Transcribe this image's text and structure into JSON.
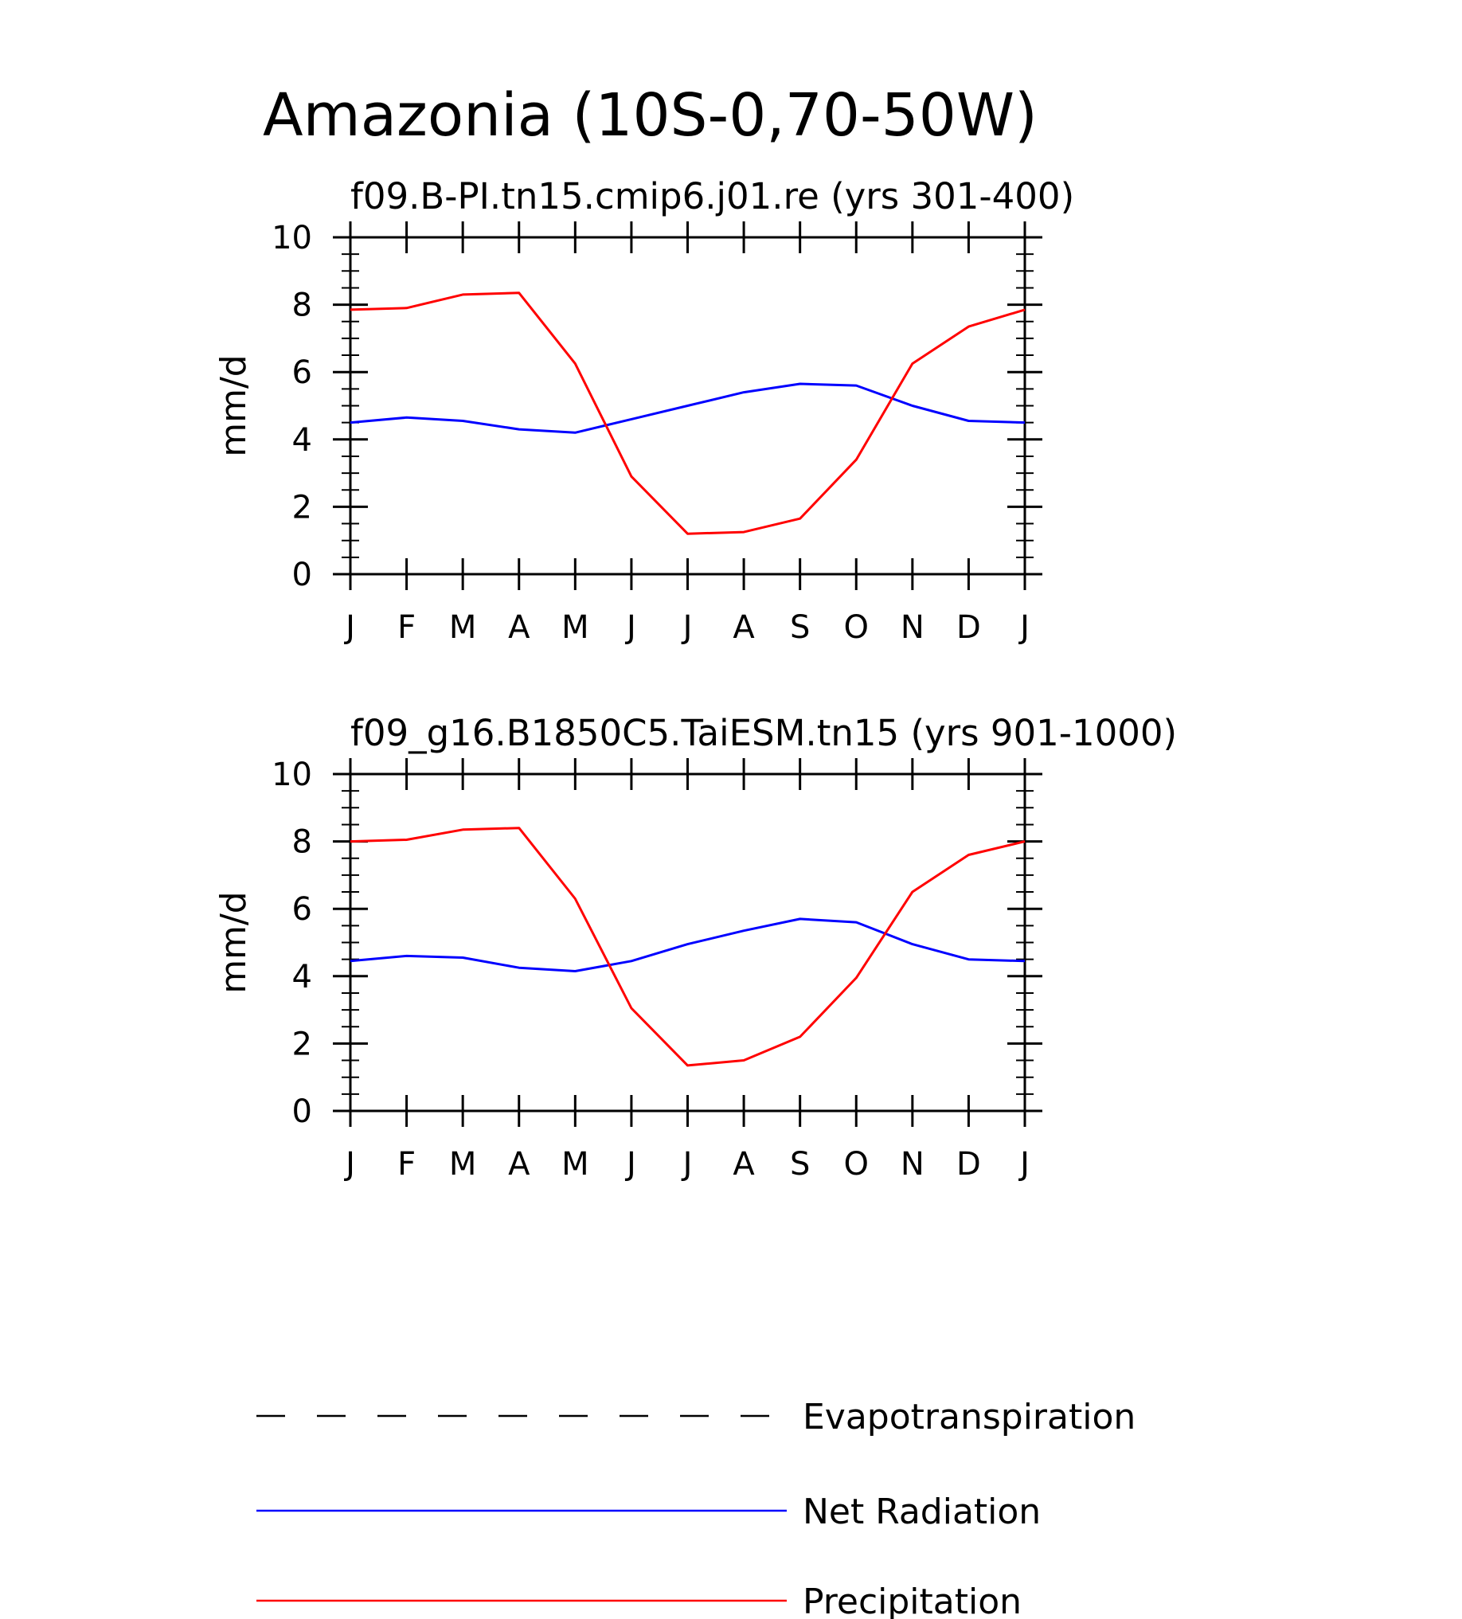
{
  "title": "Amazonia (10S-0,70-50W)",
  "chart_data": [
    {
      "type": "line",
      "title": "f09.B-PI.tn15.cmip6.j01.re (yrs 301-400)",
      "ylabel": "mm/d",
      "xlabel": "",
      "ylim": [
        0,
        10
      ],
      "yticks": [
        "0",
        "2",
        "4",
        "6",
        "8",
        "10"
      ],
      "categories": [
        "J",
        "F",
        "M",
        "A",
        "M",
        "J",
        "J",
        "A",
        "S",
        "O",
        "N",
        "D",
        "J"
      ],
      "series": [
        {
          "name": "Net Radiation",
          "color": "#0000ff",
          "values": [
            4.5,
            4.65,
            4.55,
            4.3,
            4.2,
            4.6,
            5.0,
            5.4,
            5.65,
            5.6,
            5.0,
            4.55,
            4.5
          ]
        },
        {
          "name": "Precipitation",
          "color": "#ff0000",
          "values": [
            7.85,
            7.9,
            8.3,
            8.35,
            6.25,
            2.9,
            1.2,
            1.25,
            1.65,
            3.4,
            6.25,
            7.35,
            7.85
          ]
        }
      ]
    },
    {
      "type": "line",
      "title": "f09_g16.B1850C5.TaiESM.tn15 (yrs 901-1000)",
      "ylabel": "mm/d",
      "xlabel": "",
      "ylim": [
        0,
        10
      ],
      "yticks": [
        "0",
        "2",
        "4",
        "6",
        "8",
        "10"
      ],
      "categories": [
        "J",
        "F",
        "M",
        "A",
        "M",
        "J",
        "J",
        "A",
        "S",
        "O",
        "N",
        "D",
        "J"
      ],
      "series": [
        {
          "name": "Net Radiation",
          "color": "#0000ff",
          "values": [
            4.45,
            4.6,
            4.55,
            4.25,
            4.15,
            4.45,
            4.95,
            5.35,
            5.7,
            5.6,
            4.95,
            4.5,
            4.45
          ]
        },
        {
          "name": "Precipitation",
          "color": "#ff0000",
          "values": [
            8.0,
            8.05,
            8.35,
            8.4,
            6.3,
            3.05,
            1.35,
            1.5,
            2.2,
            3.95,
            6.5,
            7.6,
            8.0
          ]
        }
      ]
    }
  ],
  "legend": [
    {
      "label": "Evapotranspiration",
      "color": "#000000",
      "style": "dashed"
    },
    {
      "label": "Net Radiation",
      "color": "#0000ff",
      "style": "solid"
    },
    {
      "label": "Precipitation",
      "color": "#ff0000",
      "style": "solid"
    }
  ]
}
